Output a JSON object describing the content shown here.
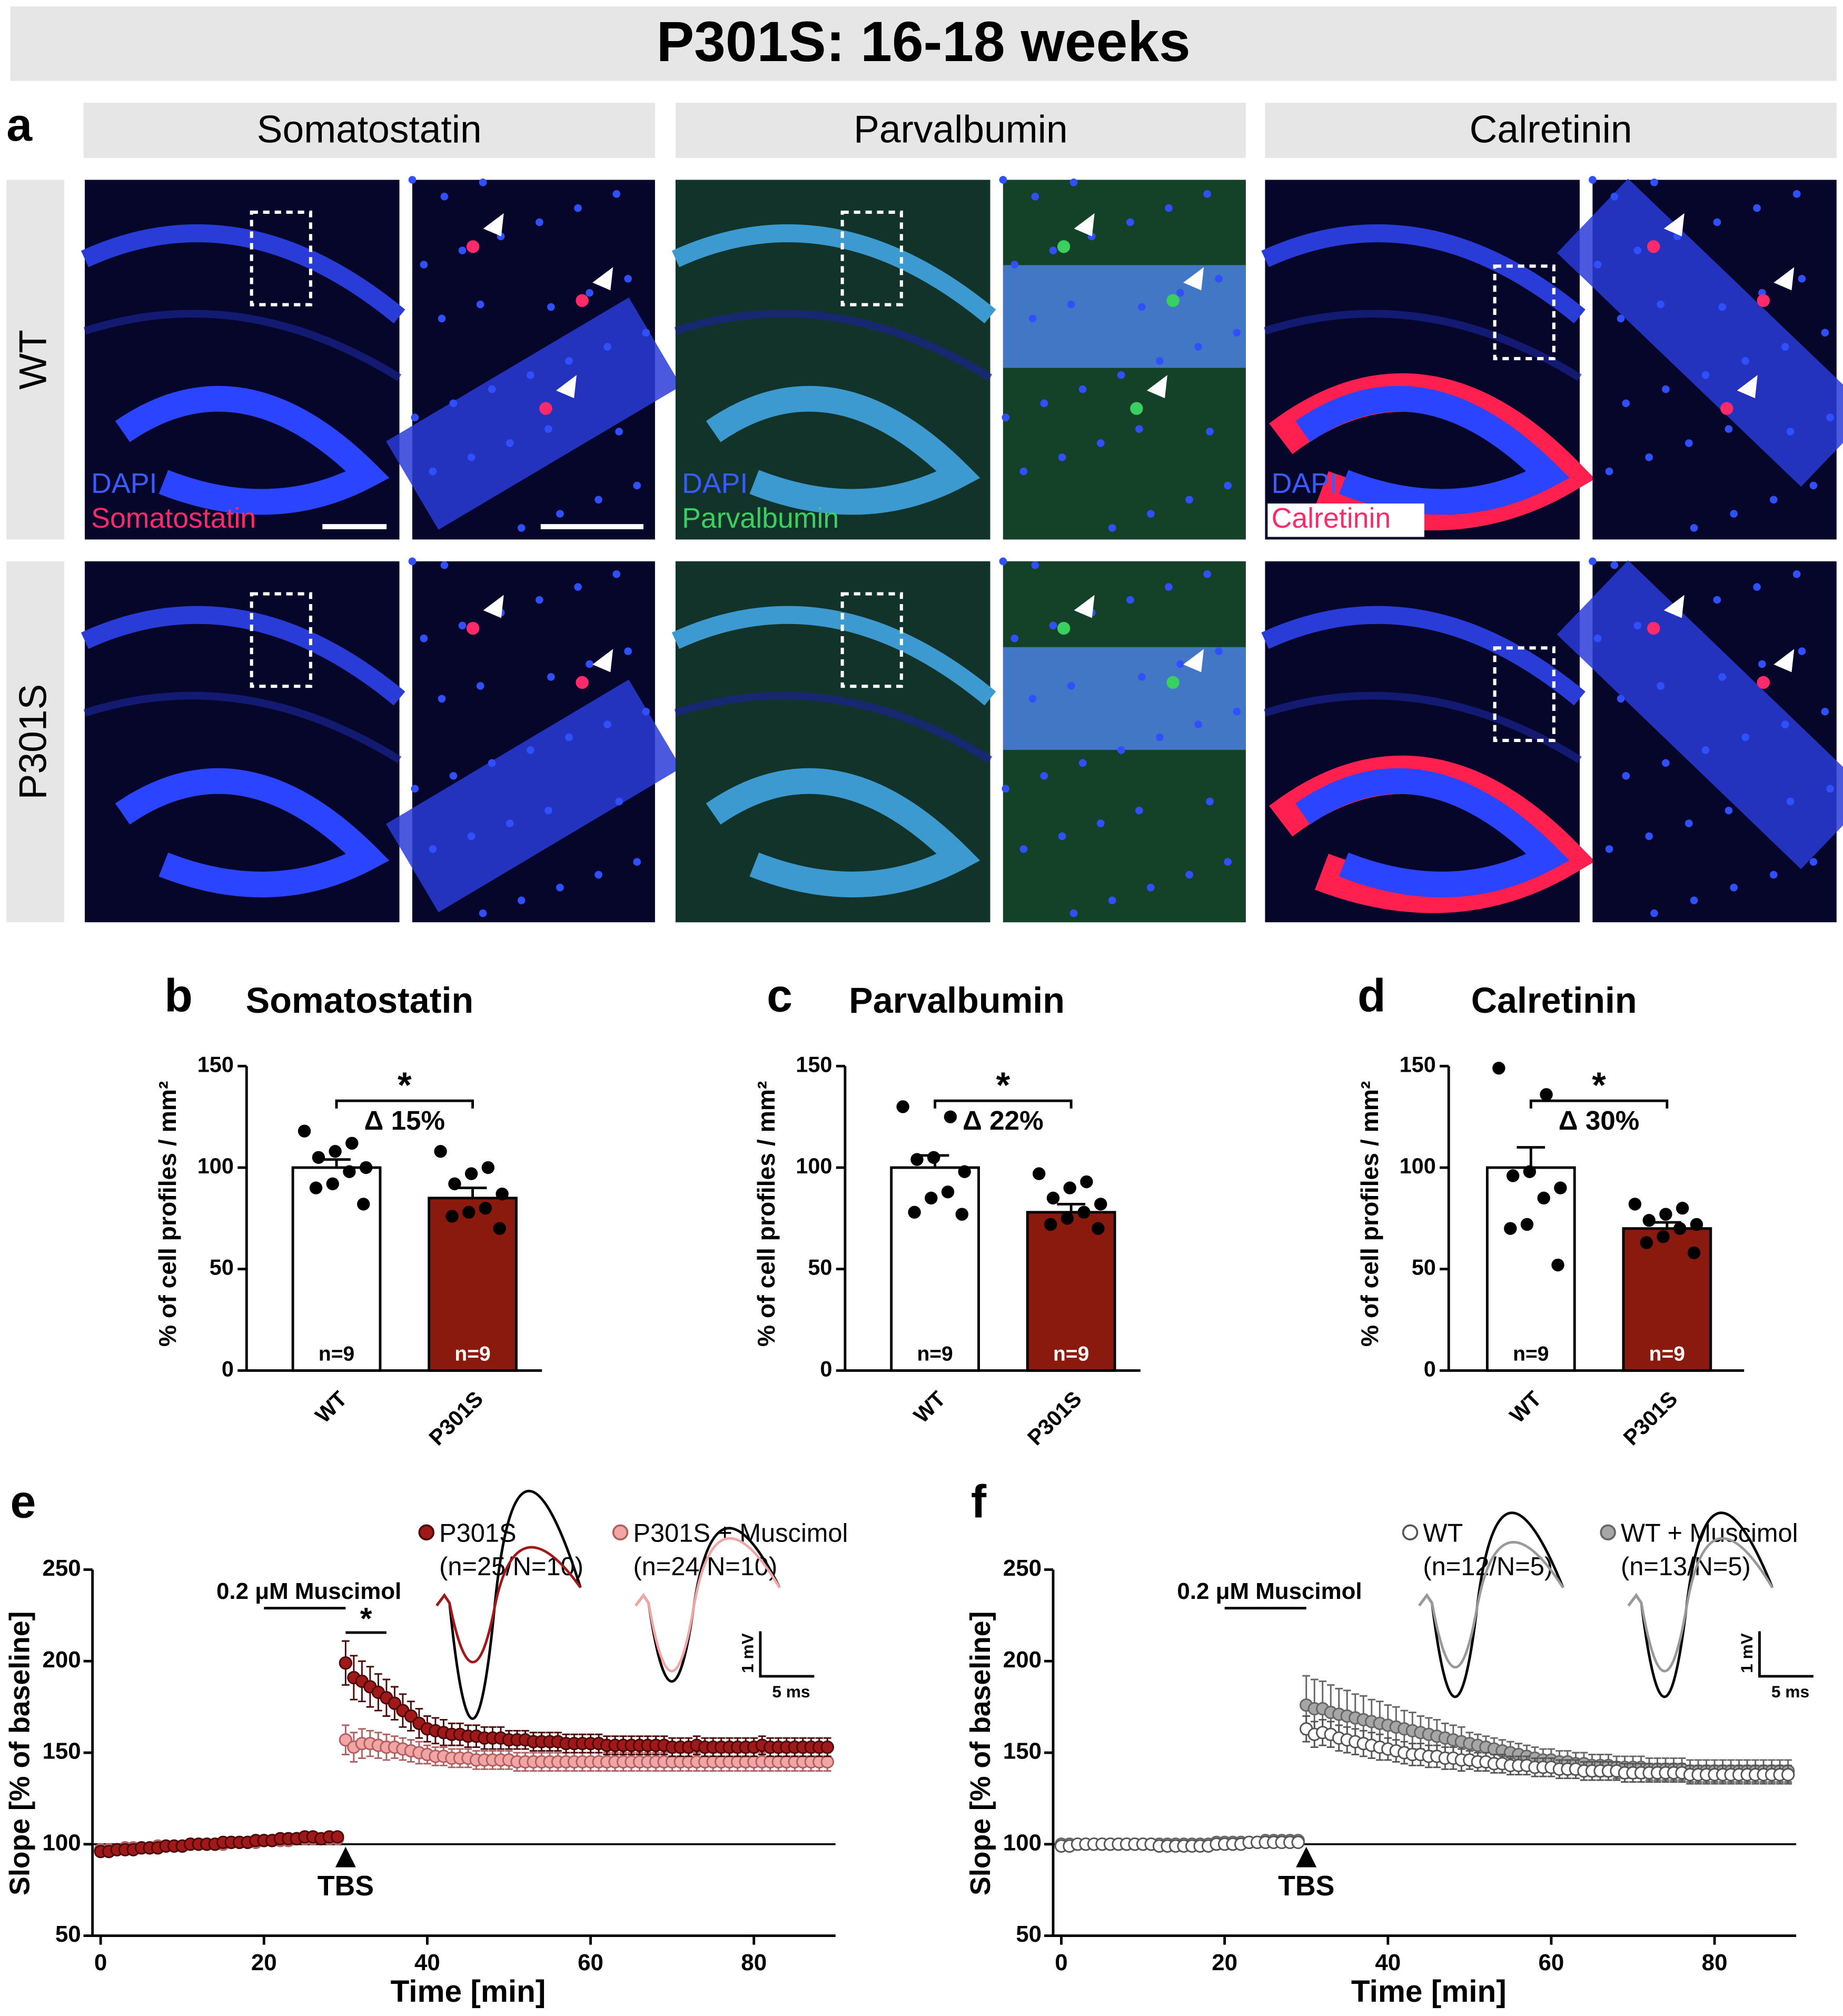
{
  "header": {
    "title": "P301S: 16-18 weeks"
  },
  "panel_a": {
    "letter": "a",
    "columns": [
      "Somatostatin",
      "Parvalbumin",
      "Calretinin"
    ],
    "rows": [
      "WT",
      "P301S"
    ],
    "stains": [
      [
        "DAPI",
        "Somatostatin"
      ],
      [
        "DAPI",
        "Parvalbumin"
      ],
      [
        "DAPI",
        "Calretinin"
      ]
    ]
  },
  "chart_data": [
    {
      "type": "bar",
      "letter": "b",
      "title": "Somatostatin",
      "ylabel": "% of cell profiles / mm²",
      "categories": [
        "WT",
        "P301S"
      ],
      "values": [
        100,
        85
      ],
      "errors": [
        4,
        5
      ],
      "colors": [
        "#ffffff",
        "#8b1a0e"
      ],
      "points": [
        [
          118,
          112,
          108,
          105,
          100,
          98,
          92,
          90,
          82
        ],
        [
          108,
          100,
          97,
          92,
          87,
          80,
          78,
          76,
          70
        ]
      ],
      "n_labels": [
        "n=9",
        "n=9"
      ],
      "significance": "*",
      "annotation": "Δ 15%",
      "ylim": [
        0,
        150
      ],
      "yticks": [
        0,
        50,
        100,
        150
      ]
    },
    {
      "type": "bar",
      "letter": "c",
      "title": "Parvalbumin",
      "ylabel": "% of cell profiles / mm²",
      "categories": [
        "WT",
        "P301S"
      ],
      "values": [
        100,
        78
      ],
      "errors": [
        6,
        4
      ],
      "colors": [
        "#ffffff",
        "#8b1a0e"
      ],
      "points": [
        [
          130,
          125,
          105,
          104,
          98,
          88,
          85,
          78,
          77
        ],
        [
          97,
          93,
          90,
          85,
          82,
          78,
          75,
          72,
          70
        ]
      ],
      "n_labels": [
        "n=9",
        "n=9"
      ],
      "significance": "*",
      "annotation": "Δ 22%",
      "ylim": [
        0,
        150
      ],
      "yticks": [
        0,
        50,
        100,
        150
      ]
    },
    {
      "type": "bar",
      "letter": "d",
      "title": "Calretinin",
      "ylabel": "% of cell profiles / mm²",
      "categories": [
        "WT",
        "P301S"
      ],
      "values": [
        100,
        70
      ],
      "errors": [
        10,
        3
      ],
      "colors": [
        "#ffffff",
        "#8b1a0e"
      ],
      "points": [
        [
          149,
          136,
          98,
          96,
          90,
          85,
          72,
          70,
          52
        ],
        [
          82,
          80,
          77,
          74,
          72,
          70,
          66,
          63,
          58
        ]
      ],
      "n_labels": [
        "n=9",
        "n=9"
      ],
      "significance": "*",
      "annotation": "Δ 30%",
      "ylim": [
        0,
        150
      ],
      "yticks": [
        0,
        50,
        100,
        150
      ]
    },
    {
      "type": "line",
      "letter": "e",
      "xlabel": "Time [min]",
      "ylabel": "Slope [% of baseline]",
      "xlim": [
        -1,
        90
      ],
      "xticks": [
        0,
        20,
        40,
        60,
        80
      ],
      "ylim": [
        50,
        250
      ],
      "yticks": [
        50,
        100,
        150,
        200,
        250
      ],
      "reference_line": 100,
      "event": {
        "time": 30,
        "label": "TBS"
      },
      "drug": {
        "label": "0.2 μM Muscimol",
        "x": [
          20,
          30
        ]
      },
      "significance": {
        "text": "*",
        "x": [
          30,
          35
        ]
      },
      "scale_labels": [
        "1 mV",
        "5 ms"
      ],
      "x": [
        0,
        1,
        2,
        3,
        4,
        5,
        6,
        7,
        8,
        9,
        10,
        11,
        12,
        13,
        14,
        15,
        16,
        17,
        18,
        19,
        20,
        21,
        22,
        23,
        24,
        25,
        26,
        27,
        28,
        29,
        30,
        31,
        32,
        33,
        34,
        35,
        36,
        37,
        38,
        39,
        40,
        41,
        42,
        43,
        44,
        45,
        46,
        47,
        48,
        49,
        50,
        51,
        52,
        53,
        54,
        55,
        56,
        57,
        58,
        59,
        60,
        61,
        62,
        63,
        64,
        65,
        66,
        67,
        68,
        69,
        70,
        71,
        72,
        73,
        74,
        75,
        76,
        77,
        78,
        79,
        80,
        81,
        82,
        83,
        84,
        85,
        86,
        87,
        88,
        89
      ],
      "series": [
        {
          "name": "P301S",
          "n_label": "(n=25/N=10)",
          "color": "#a01818",
          "edgecolor": "#4a0808",
          "values": [
            96,
            96,
            97,
            97,
            97,
            98,
            98,
            98,
            99,
            99,
            99,
            100,
            100,
            100,
            100,
            101,
            101,
            101,
            101,
            102,
            102,
            102,
            103,
            103,
            103,
            104,
            104,
            103,
            104,
            104,
            199,
            191,
            189,
            186,
            183,
            180,
            177,
            173,
            170,
            166,
            163,
            162,
            161,
            160,
            160,
            159,
            159,
            158,
            158,
            158,
            157,
            157,
            157,
            156,
            156,
            156,
            156,
            155,
            155,
            155,
            155,
            155,
            154,
            154,
            154,
            154,
            154,
            154,
            154,
            154,
            153,
            153,
            153,
            154,
            153,
            153,
            153,
            153,
            153,
            153,
            153,
            154,
            153,
            153,
            153,
            153,
            153,
            153,
            153,
            153
          ],
          "errors": [
            2,
            2,
            2,
            2,
            2,
            2,
            2,
            2,
            2,
            2,
            2,
            2,
            2,
            2,
            2,
            2,
            2,
            2,
            2,
            2,
            2,
            2,
            2,
            2,
            2,
            2,
            2,
            2,
            2,
            2,
            12,
            12,
            11,
            11,
            10,
            10,
            9,
            9,
            8,
            8,
            7,
            7,
            7,
            6,
            6,
            6,
            6,
            6,
            6,
            6,
            5,
            5,
            5,
            5,
            5,
            5,
            5,
            5,
            5,
            5,
            5,
            5,
            5,
            5,
            5,
            5,
            5,
            5,
            5,
            5,
            5,
            5,
            5,
            5,
            5,
            5,
            5,
            5,
            5,
            5,
            5,
            5,
            5,
            5,
            5,
            5,
            5,
            5,
            5,
            5
          ]
        },
        {
          "name": "P301S + Muscimol",
          "n_label": "(n=24/N=10)",
          "color": "#f2a5a5",
          "edgecolor": "#b06060",
          "values": [
            97,
            97,
            97,
            98,
            98,
            98,
            98,
            99,
            99,
            99,
            99,
            100,
            100,
            100,
            100,
            100,
            101,
            101,
            101,
            101,
            102,
            102,
            102,
            102,
            103,
            103,
            103,
            103,
            103,
            103,
            157,
            153,
            155,
            155,
            154,
            153,
            153,
            152,
            151,
            150,
            149,
            148,
            148,
            147,
            147,
            147,
            146,
            146,
            146,
            146,
            146,
            145,
            145,
            145,
            145,
            145,
            145,
            145,
            145,
            145,
            145,
            145,
            145,
            145,
            145,
            145,
            145,
            145,
            145,
            145,
            145,
            145,
            145,
            145,
            145,
            145,
            145,
            145,
            145,
            145,
            145,
            145,
            145,
            145,
            145,
            145,
            145,
            145,
            145,
            145
          ],
          "errors": [
            2,
            2,
            2,
            2,
            2,
            2,
            2,
            2,
            2,
            2,
            2,
            2,
            2,
            2,
            2,
            2,
            2,
            2,
            2,
            2,
            2,
            2,
            2,
            2,
            2,
            2,
            2,
            2,
            2,
            2,
            8,
            8,
            8,
            7,
            7,
            7,
            6,
            6,
            6,
            6,
            5,
            5,
            5,
            5,
            5,
            5,
            5,
            5,
            5,
            5,
            5,
            5,
            5,
            5,
            5,
            5,
            5,
            5,
            5,
            5,
            5,
            5,
            5,
            5,
            5,
            5,
            5,
            5,
            5,
            5,
            5,
            5,
            5,
            5,
            5,
            5,
            5,
            5,
            5,
            5,
            5,
            5,
            5,
            5,
            5,
            5,
            5,
            5,
            5,
            5
          ]
        }
      ]
    },
    {
      "type": "line",
      "letter": "f",
      "xlabel": "Time [min]",
      "ylabel": "Slope [% of baseline]",
      "xlim": [
        -1,
        90
      ],
      "xticks": [
        0,
        20,
        40,
        60,
        80
      ],
      "ylim": [
        50,
        250
      ],
      "yticks": [
        50,
        100,
        150,
        200,
        250
      ],
      "reference_line": 100,
      "event": {
        "time": 30,
        "label": "TBS"
      },
      "drug": {
        "label": "0.2 μM Muscimol",
        "x": [
          20,
          30
        ]
      },
      "scale_labels": [
        "1 mV",
        "5 ms"
      ],
      "x": [
        0,
        1,
        2,
        3,
        4,
        5,
        6,
        7,
        8,
        9,
        10,
        11,
        12,
        13,
        14,
        15,
        16,
        17,
        18,
        19,
        20,
        21,
        22,
        23,
        24,
        25,
        26,
        27,
        28,
        29,
        30,
        31,
        32,
        33,
        34,
        35,
        36,
        37,
        38,
        39,
        40,
        41,
        42,
        43,
        44,
        45,
        46,
        47,
        48,
        49,
        50,
        51,
        52,
        53,
        54,
        55,
        56,
        57,
        58,
        59,
        60,
        61,
        62,
        63,
        64,
        65,
        66,
        67,
        68,
        69,
        70,
        71,
        72,
        73,
        74,
        75,
        76,
        77,
        78,
        79,
        80,
        81,
        82,
        83,
        84,
        85,
        86,
        87,
        88,
        89
      ],
      "series": [
        {
          "name": "WT",
          "n_label": "(n=12/N=5)",
          "color": "#ffffff",
          "edgecolor": "#555555",
          "values": [
            99,
            99,
            100,
            100,
            100,
            100,
            100,
            100,
            100,
            100,
            100,
            100,
            99,
            99,
            99,
            99,
            99,
            99,
            99,
            100,
            100,
            100,
            100,
            101,
            101,
            101,
            101,
            101,
            101,
            101,
            163,
            160,
            161,
            160,
            158,
            157,
            156,
            155,
            154,
            153,
            152,
            151,
            150,
            149,
            149,
            148,
            148,
            147,
            147,
            146,
            146,
            145,
            145,
            144,
            144,
            143,
            143,
            143,
            142,
            142,
            142,
            141,
            141,
            141,
            140,
            140,
            140,
            140,
            140,
            139,
            139,
            139,
            139,
            139,
            139,
            139,
            139,
            138,
            138,
            138,
            138,
            138,
            138,
            138,
            138,
            138,
            138,
            138,
            138,
            138
          ],
          "errors": [
            2,
            2,
            2,
            2,
            2,
            2,
            2,
            2,
            2,
            2,
            2,
            2,
            2,
            2,
            2,
            2,
            2,
            2,
            2,
            2,
            2,
            2,
            2,
            2,
            2,
            2,
            2,
            2,
            2,
            2,
            7,
            7,
            7,
            7,
            7,
            7,
            7,
            7,
            7,
            7,
            6,
            6,
            6,
            6,
            6,
            6,
            6,
            6,
            6,
            6,
            5,
            5,
            5,
            5,
            5,
            5,
            5,
            5,
            5,
            5,
            5,
            5,
            5,
            5,
            5,
            5,
            5,
            5,
            5,
            5,
            5,
            5,
            5,
            5,
            5,
            5,
            5,
            5,
            5,
            5,
            5,
            5,
            5,
            5,
            5,
            5,
            5,
            5,
            5,
            5
          ]
        },
        {
          "name": "WT + Muscimol",
          "n_label": "(n=13/N=5)",
          "color": "#a6a6a6",
          "edgecolor": "#666666",
          "values": [
            100,
            100,
            100,
            100,
            100,
            100,
            100,
            100,
            100,
            100,
            100,
            100,
            100,
            100,
            100,
            100,
            100,
            100,
            100,
            101,
            101,
            101,
            101,
            101,
            101,
            102,
            102,
            102,
            102,
            102,
            176,
            174,
            174,
            172,
            171,
            170,
            169,
            168,
            167,
            166,
            165,
            164,
            163,
            162,
            161,
            160,
            159,
            158,
            157,
            156,
            155,
            154,
            153,
            152,
            151,
            150,
            149,
            148,
            147,
            146,
            146,
            145,
            145,
            144,
            144,
            143,
            143,
            143,
            142,
            142,
            142,
            142,
            141,
            141,
            141,
            141,
            141,
            140,
            140,
            140,
            140,
            140,
            140,
            140,
            140,
            140,
            140,
            140,
            140,
            140
          ],
          "errors": [
            2,
            2,
            2,
            2,
            2,
            2,
            2,
            2,
            2,
            2,
            2,
            2,
            2,
            2,
            2,
            2,
            2,
            2,
            2,
            2,
            2,
            2,
            2,
            2,
            2,
            2,
            2,
            2,
            2,
            2,
            16,
            16,
            15,
            15,
            14,
            14,
            13,
            13,
            12,
            12,
            11,
            11,
            10,
            10,
            9,
            9,
            9,
            8,
            8,
            8,
            6,
            6,
            6,
            6,
            6,
            6,
            6,
            6,
            6,
            6,
            6,
            6,
            6,
            6,
            6,
            6,
            6,
            6,
            6,
            6,
            6,
            6,
            6,
            6,
            6,
            6,
            6,
            6,
            6,
            6,
            6,
            6,
            6,
            6,
            6,
            6,
            6,
            6,
            6,
            6
          ]
        }
      ]
    }
  ]
}
